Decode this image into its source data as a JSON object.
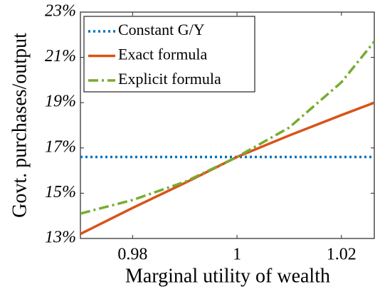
{
  "chart_data": {
    "type": "line",
    "xlabel": "Marginal utility of wealth",
    "ylabel": "Govt. purchases/output",
    "x": [
      0.97,
      0.98,
      0.99,
      1.0,
      1.01,
      1.02,
      1.0263
    ],
    "series": [
      {
        "name": "Constant G/Y",
        "color": "#0072bd",
        "style": "dotted",
        "values": [
          16.6,
          16.6,
          16.6,
          16.6,
          16.6,
          16.6,
          16.6
        ]
      },
      {
        "name": "Exact formula",
        "color": "#d95319",
        "style": "solid",
        "values": [
          13.2,
          14.35,
          15.45,
          16.6,
          17.55,
          18.45,
          19.0
        ]
      },
      {
        "name": "Explicit formula",
        "color": "#77ac30",
        "style": "dashdot",
        "values": [
          14.1,
          14.7,
          15.5,
          16.6,
          17.9,
          19.9,
          21.7
        ]
      }
    ],
    "xlim": [
      0.97,
      1.0263
    ],
    "xticks": [
      0.98,
      1,
      1.02
    ],
    "ylim": [
      13,
      23
    ],
    "yticks": [
      {
        "value": 13,
        "label": "13%"
      },
      {
        "value": 15,
        "label": "15%"
      },
      {
        "value": 17,
        "label": "17%"
      },
      {
        "value": 19,
        "label": "19%"
      },
      {
        "value": 21,
        "label": "21%"
      },
      {
        "value": 23,
        "label": "23%"
      }
    ],
    "legend": "upper-left"
  }
}
